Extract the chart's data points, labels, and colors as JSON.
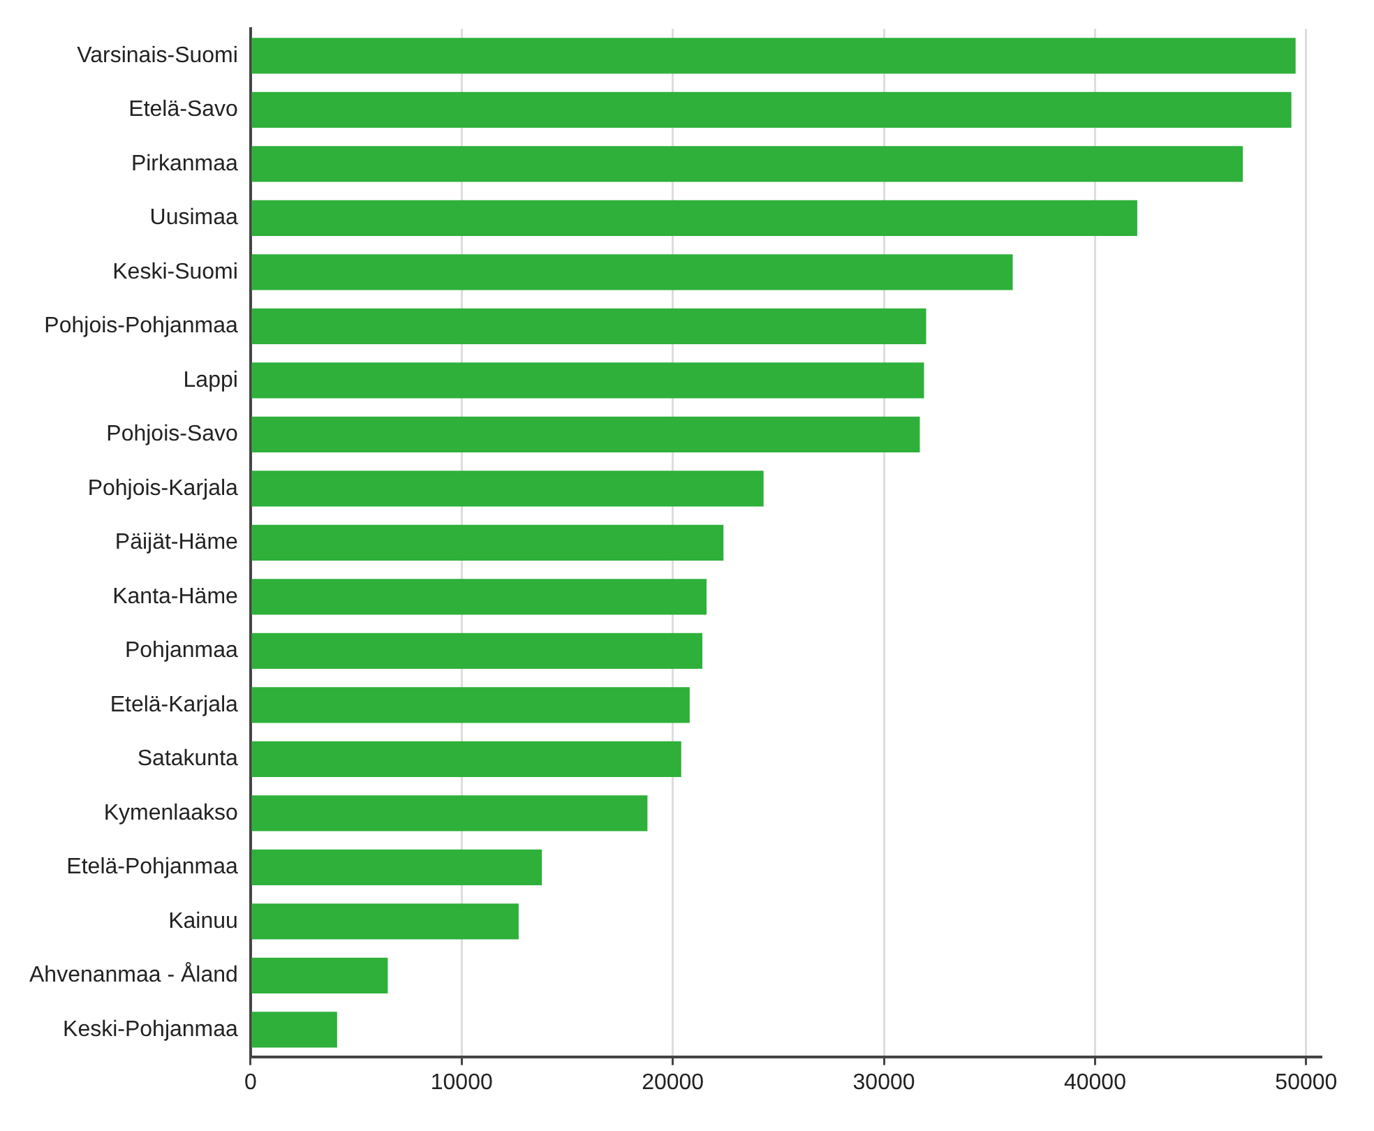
{
  "chart_data": {
    "type": "bar",
    "orientation": "horizontal",
    "categories": [
      "Varsinais-Suomi",
      "Etelä-Savo",
      "Pirkanmaa",
      "Uusimaa",
      "Keski-Suomi",
      "Pohjois-Pohjanmaa",
      "Lappi",
      "Pohjois-Savo",
      "Pohjois-Karjala",
      "Päijät-Häme",
      "Kanta-Häme",
      "Pohjanmaa",
      "Etelä-Karjala",
      "Satakunta",
      "Kymenlaakso",
      "Etelä-Pohjanmaa",
      "Kainuu",
      "Ahvenanmaa - Åland",
      "Keski-Pohjanmaa"
    ],
    "values": [
      49500,
      49300,
      47000,
      42000,
      36100,
      32000,
      31900,
      31700,
      24300,
      22400,
      21600,
      21400,
      20800,
      20400,
      18800,
      13800,
      12700,
      6500,
      4100
    ],
    "color": "#2eb03a",
    "xlim": [
      0,
      50700
    ],
    "xticks": [
      0,
      10000,
      20000,
      30000,
      40000,
      50000
    ],
    "grid": "x",
    "legend": false
  }
}
